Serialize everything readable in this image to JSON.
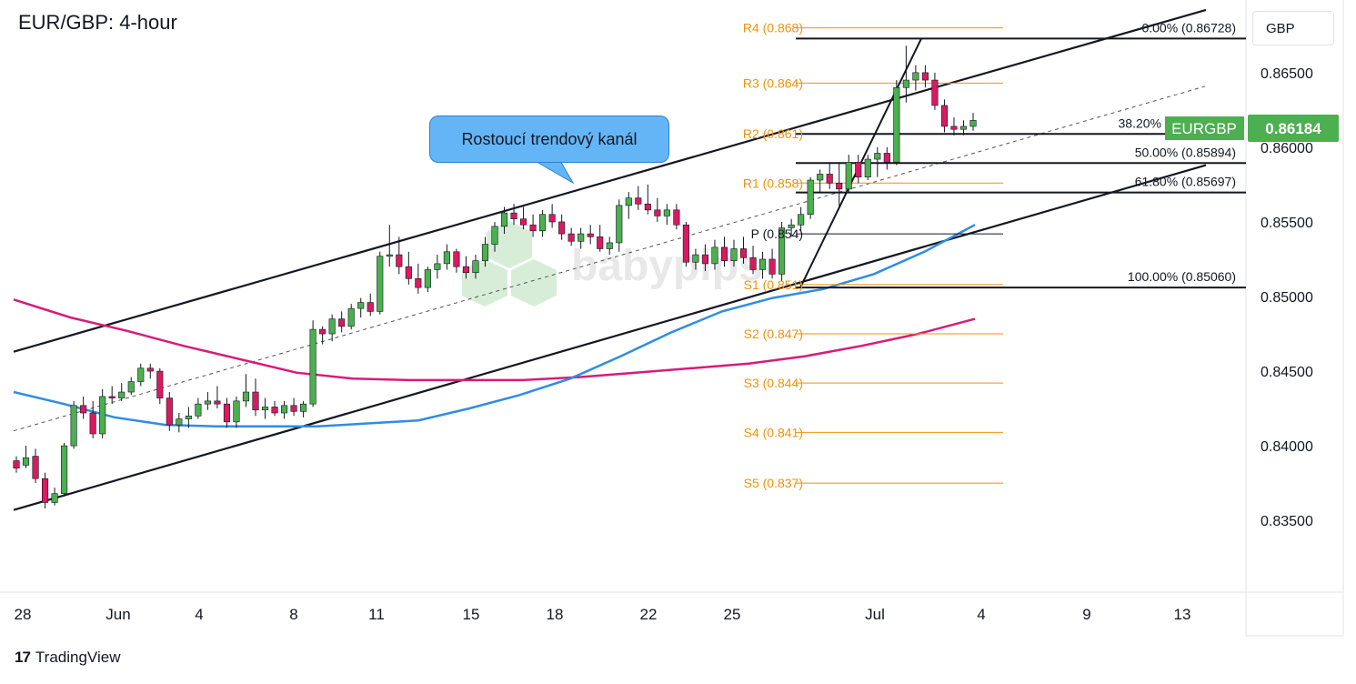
{
  "header": {
    "title": "EUR/GBP: 4-hour",
    "currency": "GBP"
  },
  "annotation": {
    "channel_label": "Rostoucí trendový kanál"
  },
  "footer": {
    "brand": "TradingView"
  },
  "watermark": "babypips",
  "price_tag": {
    "symbol": "EURGBP",
    "price": "0.86184",
    "color": "#4caf50"
  },
  "colors": {
    "up": "#4caf50",
    "down": "#d81b60",
    "ma_fast": "#2e8de4",
    "ma_slow": "#d81b7a",
    "pivot": "#f0920c"
  },
  "chart_data": {
    "type": "candlestick",
    "title": "EUR/GBP: 4-hour",
    "y_axis": {
      "ticks": [
        "0.83500",
        "0.84000",
        "0.84500",
        "0.85000",
        "0.85500",
        "0.86000",
        "0.86500"
      ],
      "ylim": [
        0.8305,
        0.8695
      ]
    },
    "x_axis": {
      "ticks": [
        "28",
        "Jun",
        "4",
        "8",
        "11",
        "15",
        "18",
        "22",
        "25",
        "Jul",
        "4",
        "9",
        "13"
      ]
    },
    "pivot_levels": [
      {
        "label": "R4 (0.868)",
        "value": 0.868
      },
      {
        "label": "R3 (0.864)",
        "value": 0.8643
      },
      {
        "label": "R2 (0.861)",
        "value": 0.8609
      },
      {
        "label": "R1 (0.858)",
        "value": 0.8576
      },
      {
        "label": "P (0.854)",
        "value": 0.8542
      },
      {
        "label": "S1 (0.851)",
        "value": 0.8508
      },
      {
        "label": "S2 (0.847)",
        "value": 0.8475
      },
      {
        "label": "S3 (0.844)",
        "value": 0.8442
      },
      {
        "label": "S4 (0.841)",
        "value": 0.8409
      },
      {
        "label": "S5 (0.837)",
        "value": 0.8375
      }
    ],
    "fibonacci": [
      {
        "label": "0.00% (0.86728)",
        "value": 0.86728
      },
      {
        "label": "38.20%",
        "value": 0.86089
      },
      {
        "label": "50.00% (0.85894)",
        "value": 0.85894
      },
      {
        "label": "61.80% (0.85697)",
        "value": 0.85697
      },
      {
        "label": "100.00% (0.85060)",
        "value": 0.8506
      }
    ],
    "channel": {
      "upper": [
        [
          "28",
          0.8463
        ],
        [
          "13",
          0.8692
        ]
      ],
      "lower": [
        [
          "28",
          0.8357
        ],
        [
          "13",
          0.8588
        ]
      ],
      "mid": [
        [
          "28",
          0.841
        ],
        [
          "13",
          0.8641
        ]
      ]
    },
    "moving_averages": [
      {
        "name": "fast",
        "values": [
          0.8436,
          0.8428,
          0.8419,
          0.8414,
          0.8413,
          0.8413,
          0.8413,
          0.8415,
          0.8417,
          0.8425,
          0.8434,
          0.8445,
          0.846,
          0.8476,
          0.849,
          0.8499,
          0.8505,
          0.8515,
          0.853,
          0.8548
        ]
      },
      {
        "name": "slow",
        "values": [
          0.8498,
          0.8486,
          0.8477,
          0.8467,
          0.8458,
          0.8449,
          0.8445,
          0.8444,
          0.8444,
          0.8444,
          0.8446,
          0.8449,
          0.8452,
          0.8455,
          0.846,
          0.8467,
          0.8475,
          0.8485
        ]
      }
    ],
    "candles_ohlc": [
      [
        0.839,
        0.8393,
        0.8382,
        0.8385
      ],
      [
        0.8387,
        0.84,
        0.8385,
        0.8392
      ],
      [
        0.8393,
        0.8398,
        0.8375,
        0.8378
      ],
      [
        0.8378,
        0.8382,
        0.8358,
        0.8362
      ],
      [
        0.8362,
        0.8372,
        0.836,
        0.8368
      ],
      [
        0.8368,
        0.8402,
        0.8366,
        0.84
      ],
      [
        0.84,
        0.843,
        0.8398,
        0.8427
      ],
      [
        0.8427,
        0.8433,
        0.8418,
        0.8422
      ],
      [
        0.8422,
        0.843,
        0.8405,
        0.8408
      ],
      [
        0.8408,
        0.8438,
        0.8405,
        0.8433
      ],
      [
        0.8433,
        0.844,
        0.8428,
        0.8432
      ],
      [
        0.8432,
        0.8442,
        0.843,
        0.8436
      ],
      [
        0.8436,
        0.8446,
        0.8434,
        0.8443
      ],
      [
        0.8443,
        0.8455,
        0.844,
        0.8452
      ],
      [
        0.8452,
        0.8455,
        0.8445,
        0.845
      ],
      [
        0.845,
        0.8452,
        0.8428,
        0.8432
      ],
      [
        0.8432,
        0.8436,
        0.841,
        0.8414
      ],
      [
        0.8414,
        0.8422,
        0.8409,
        0.8418
      ],
      [
        0.8418,
        0.8426,
        0.8412,
        0.842
      ],
      [
        0.842,
        0.8432,
        0.8418,
        0.8428
      ],
      [
        0.8428,
        0.8436,
        0.8424,
        0.843
      ],
      [
        0.843,
        0.844,
        0.8425,
        0.8428
      ],
      [
        0.8428,
        0.8432,
        0.8412,
        0.8416
      ],
      [
        0.8416,
        0.8433,
        0.8412,
        0.843
      ],
      [
        0.843,
        0.8448,
        0.8426,
        0.8436
      ],
      [
        0.8436,
        0.8445,
        0.842,
        0.8424
      ],
      [
        0.8424,
        0.8432,
        0.8418,
        0.8426
      ],
      [
        0.8426,
        0.843,
        0.842,
        0.8422
      ],
      [
        0.8422,
        0.843,
        0.8418,
        0.8427
      ],
      [
        0.8427,
        0.8432,
        0.842,
        0.8423
      ],
      [
        0.8423,
        0.843,
        0.8419,
        0.8428
      ],
      [
        0.8428,
        0.8484,
        0.8426,
        0.8478
      ],
      [
        0.8478,
        0.848,
        0.8468,
        0.8475
      ],
      [
        0.8475,
        0.8488,
        0.847,
        0.8485
      ],
      [
        0.8485,
        0.849,
        0.8476,
        0.848
      ],
      [
        0.848,
        0.8495,
        0.8478,
        0.8492
      ],
      [
        0.8492,
        0.8499,
        0.8486,
        0.8496
      ],
      [
        0.8496,
        0.8502,
        0.8487,
        0.849
      ],
      [
        0.849,
        0.853,
        0.8488,
        0.8527
      ],
      [
        0.8527,
        0.8548,
        0.852,
        0.8528
      ],
      [
        0.8528,
        0.854,
        0.8515,
        0.852
      ],
      [
        0.852,
        0.853,
        0.8508,
        0.8512
      ],
      [
        0.8512,
        0.8522,
        0.8502,
        0.8506
      ],
      [
        0.8506,
        0.852,
        0.8503,
        0.8518
      ],
      [
        0.8518,
        0.8528,
        0.8512,
        0.8522
      ],
      [
        0.8522,
        0.8535,
        0.8518,
        0.853
      ],
      [
        0.853,
        0.8532,
        0.8516,
        0.852
      ],
      [
        0.852,
        0.8527,
        0.8512,
        0.8516
      ],
      [
        0.8516,
        0.8528,
        0.8512,
        0.8524
      ],
      [
        0.8524,
        0.854,
        0.852,
        0.8535
      ],
      [
        0.8535,
        0.855,
        0.853,
        0.8547
      ],
      [
        0.8547,
        0.856,
        0.8542,
        0.8556
      ],
      [
        0.8556,
        0.8562,
        0.8548,
        0.8552
      ],
      [
        0.8552,
        0.856,
        0.8545,
        0.8548
      ],
      [
        0.8548,
        0.8555,
        0.854,
        0.8544
      ],
      [
        0.8544,
        0.8558,
        0.854,
        0.8555
      ],
      [
        0.8555,
        0.8562,
        0.8546,
        0.855
      ],
      [
        0.855,
        0.8555,
        0.8538,
        0.8542
      ],
      [
        0.8542,
        0.8546,
        0.8534,
        0.8537
      ],
      [
        0.8537,
        0.8546,
        0.8532,
        0.8542
      ],
      [
        0.8542,
        0.8548,
        0.8535,
        0.854
      ],
      [
        0.854,
        0.8548,
        0.853,
        0.8532
      ],
      [
        0.8532,
        0.854,
        0.8528,
        0.8536
      ],
      [
        0.8536,
        0.8565,
        0.853,
        0.8561
      ],
      [
        0.8561,
        0.857,
        0.8552,
        0.8566
      ],
      [
        0.8566,
        0.8574,
        0.8558,
        0.8562
      ],
      [
        0.8562,
        0.8575,
        0.8555,
        0.8558
      ],
      [
        0.8558,
        0.8566,
        0.855,
        0.8554
      ],
      [
        0.8554,
        0.8562,
        0.8548,
        0.8558
      ],
      [
        0.8558,
        0.8562,
        0.8545,
        0.8548
      ],
      [
        0.8548,
        0.855,
        0.852,
        0.8523
      ],
      [
        0.8523,
        0.8532,
        0.8518,
        0.8528
      ],
      [
        0.8528,
        0.8535,
        0.8517,
        0.8522
      ],
      [
        0.8522,
        0.8538,
        0.8518,
        0.8533
      ],
      [
        0.8533,
        0.854,
        0.852,
        0.8524
      ],
      [
        0.8524,
        0.8538,
        0.852,
        0.8532
      ],
      [
        0.8532,
        0.854,
        0.8522,
        0.8526
      ],
      [
        0.8526,
        0.8534,
        0.8515,
        0.8518
      ],
      [
        0.8518,
        0.853,
        0.8512,
        0.8525
      ],
      [
        0.8525,
        0.8532,
        0.8512,
        0.8515
      ],
      [
        0.8515,
        0.855,
        0.851,
        0.8546
      ],
      [
        0.8546,
        0.8552,
        0.854,
        0.8548
      ],
      [
        0.8548,
        0.856,
        0.8544,
        0.8555
      ],
      [
        0.8555,
        0.858,
        0.8552,
        0.8578
      ],
      [
        0.8578,
        0.8585,
        0.857,
        0.8582
      ],
      [
        0.8582,
        0.859,
        0.8572,
        0.8576
      ],
      [
        0.8576,
        0.859,
        0.856,
        0.8572
      ],
      [
        0.8572,
        0.8595,
        0.857,
        0.859
      ],
      [
        0.859,
        0.8595,
        0.8576,
        0.858
      ],
      [
        0.858,
        0.8595,
        0.8578,
        0.8592
      ],
      [
        0.8592,
        0.86,
        0.858,
        0.8596
      ],
      [
        0.8596,
        0.86,
        0.8585,
        0.859
      ],
      [
        0.859,
        0.8645,
        0.8588,
        0.864
      ],
      [
        0.864,
        0.8668,
        0.863,
        0.8645
      ],
      [
        0.8645,
        0.8655,
        0.8638,
        0.865
      ],
      [
        0.865,
        0.8655,
        0.864,
        0.8645
      ],
      [
        0.8645,
        0.865,
        0.8625,
        0.8628
      ],
      [
        0.8628,
        0.8632,
        0.861,
        0.8614
      ],
      [
        0.8614,
        0.862,
        0.8608,
        0.8612
      ],
      [
        0.8612,
        0.8618,
        0.8608,
        0.8614
      ],
      [
        0.8614,
        0.8623,
        0.8611,
        0.8618
      ]
    ],
    "price_scale_label": "0.86184"
  }
}
